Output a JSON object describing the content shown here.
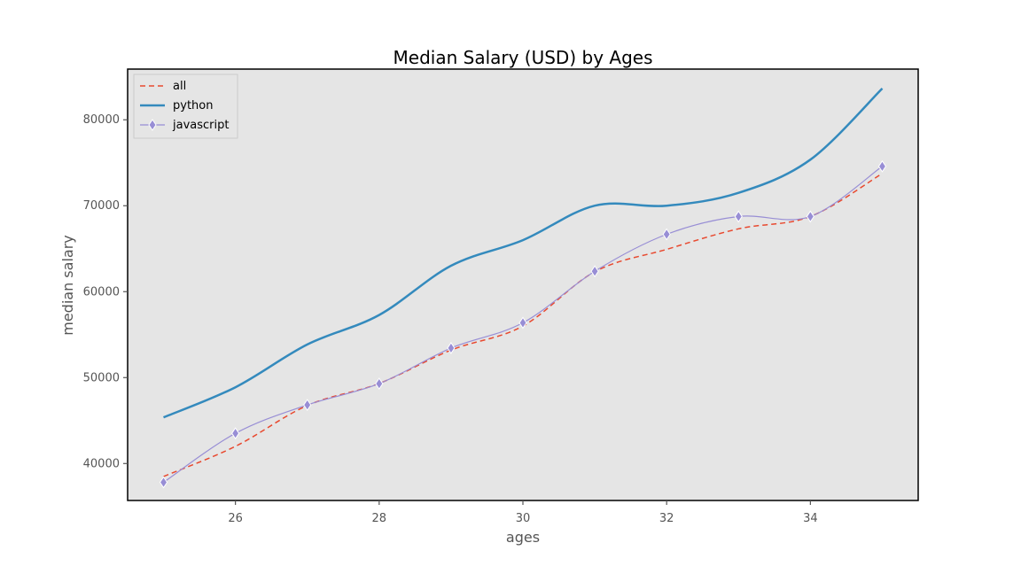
{
  "chart_data": {
    "type": "line",
    "title": "Median Salary (USD) by Ages",
    "xlabel": "ages",
    "ylabel": "median salary",
    "x": [
      25,
      26,
      27,
      28,
      29,
      30,
      31,
      32,
      33,
      34,
      35
    ],
    "xlim": [
      24.5,
      35.5
    ],
    "ylim": [
      35700,
      85900
    ],
    "xticks": [
      26,
      28,
      30,
      32,
      34
    ],
    "yticks": [
      40000,
      50000,
      60000,
      70000,
      80000
    ],
    "grid": false,
    "legend_position": "top-left",
    "series": [
      {
        "name": "all",
        "values": [
          38496,
          42000,
          46752,
          49320,
          53200,
          56000,
          62316,
          64928,
          67317,
          68748,
          73752
        ],
        "color": "#e8492f",
        "style": "dashed",
        "marker": "none"
      },
      {
        "name": "python",
        "values": [
          45372,
          48876,
          53850,
          57287,
          63016,
          65998,
          70003,
          70000,
          71496,
          75370,
          83640
        ],
        "color": "#348abd",
        "style": "solid",
        "marker": "none"
      },
      {
        "name": "javascript",
        "values": [
          37810,
          43515,
          46823,
          49293,
          53437,
          56373,
          62375,
          66674,
          68745,
          68746,
          74583
        ],
        "color": "#988ed5",
        "style": "solid",
        "marker": "diamond"
      }
    ],
    "colors": {
      "plot_background": "#e5e5e5",
      "frame": "#000000"
    }
  }
}
